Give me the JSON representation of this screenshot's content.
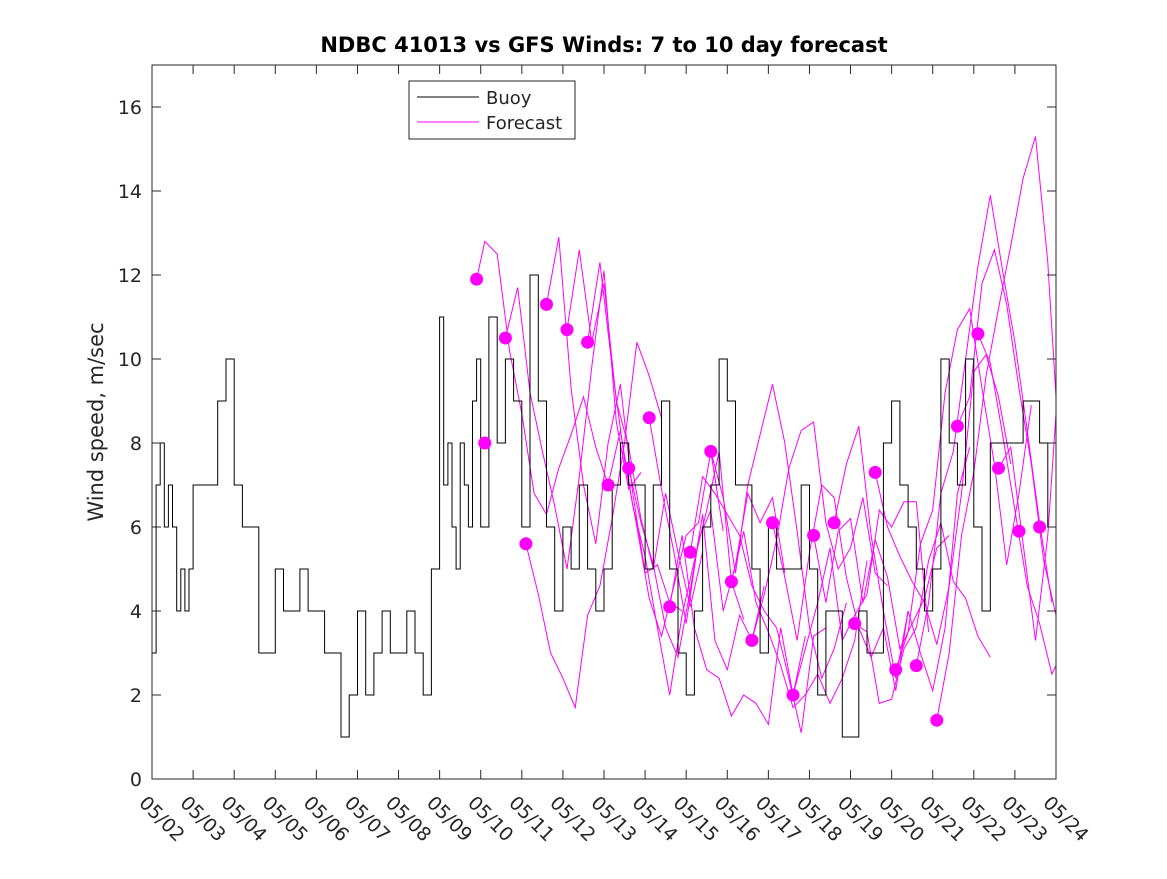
{
  "chart_data": {
    "type": "line",
    "title": "NDBC 41013 vs GFS Winds: 7 to 10 day forecast",
    "xlabel": "",
    "ylabel": "Wind speed, m/sec",
    "xlim": [
      0,
      22
    ],
    "ylim": [
      0,
      17
    ],
    "x_ticks": [
      0,
      1,
      2,
      3,
      4,
      5,
      6,
      7,
      8,
      9,
      10,
      11,
      12,
      13,
      14,
      15,
      16,
      17,
      18,
      19,
      20,
      21,
      22
    ],
    "x_tick_labels": [
      "05/02",
      "05/03",
      "05/04",
      "05/05",
      "05/06",
      "05/07",
      "05/08",
      "05/09",
      "05/10",
      "05/11",
      "05/12",
      "05/13",
      "05/14",
      "05/15",
      "05/16",
      "05/17",
      "05/18",
      "05/19",
      "05/20",
      "05/21",
      "05/22",
      "05/23",
      "05/24"
    ],
    "y_ticks": [
      0,
      2,
      4,
      6,
      8,
      10,
      12,
      14,
      16
    ],
    "y_tick_labels": [
      "0",
      "2",
      "4",
      "6",
      "8",
      "10",
      "12",
      "14",
      "16"
    ],
    "grid": false,
    "legend": {
      "placement": "top-left-inside",
      "entries": [
        "Buoy",
        "Forecast"
      ]
    },
    "colors": {
      "buoy": "#000000",
      "forecast": "#ff00ff"
    },
    "series": [
      {
        "name": "Buoy",
        "x": [
          0,
          0.1,
          0.2,
          0.3,
          0.4,
          0.5,
          0.6,
          0.7,
          0.8,
          0.9,
          1.0,
          1.2,
          1.4,
          1.6,
          1.8,
          2.0,
          2.2,
          2.4,
          2.6,
          2.8,
          3.0,
          3.2,
          3.4,
          3.6,
          3.8,
          4.0,
          4.2,
          4.4,
          4.6,
          4.8,
          5.0,
          5.2,
          5.4,
          5.6,
          5.8,
          6.0,
          6.2,
          6.4,
          6.6,
          6.8,
          7.0,
          7.1,
          7.2,
          7.3,
          7.4,
          7.5,
          7.6,
          7.7,
          7.8,
          7.9,
          8.0,
          8.2,
          8.4,
          8.6,
          8.8,
          9.0,
          9.2,
          9.4,
          9.6,
          9.8,
          10.0,
          10.2,
          10.4,
          10.6,
          10.8,
          11.0,
          11.2,
          11.4,
          11.6,
          11.8,
          12.0,
          12.2,
          12.4,
          12.6,
          12.8,
          13.0,
          13.2,
          13.4,
          13.6,
          13.8,
          14.0,
          14.2,
          14.4,
          14.6,
          14.8,
          15.0,
          15.2,
          15.4,
          15.6,
          15.8,
          16.0,
          16.2,
          16.4,
          16.6,
          16.8,
          17.0,
          17.2,
          17.4,
          17.6,
          17.8,
          18.0,
          18.2,
          18.4,
          18.6,
          18.8,
          19.0,
          19.2,
          19.4,
          19.6,
          19.8,
          20.0,
          20.2,
          20.4,
          20.6,
          20.8,
          21.0,
          21.2,
          21.4,
          21.6,
          21.8,
          22.0
        ],
        "values": [
          3,
          7,
          8,
          6,
          7,
          6,
          4,
          5,
          4,
          5,
          7,
          7,
          7,
          9,
          10,
          7,
          6,
          6,
          3,
          3,
          5,
          4,
          4,
          5,
          4,
          4,
          3,
          3,
          1,
          2,
          4,
          2,
          3,
          4,
          3,
          3,
          4,
          3,
          2,
          5,
          11,
          7,
          8,
          6,
          5,
          8,
          7,
          6,
          9,
          10,
          6,
          11,
          8,
          10,
          9,
          6,
          12,
          9,
          6,
          4,
          6,
          5,
          7,
          5,
          4,
          5,
          7,
          8,
          7,
          7,
          5,
          7,
          9,
          5,
          3,
          2,
          4,
          6,
          7,
          10,
          9,
          7,
          7,
          5,
          3,
          6,
          5,
          5,
          5,
          7,
          5,
          2,
          4,
          4,
          1,
          1,
          4,
          3,
          3,
          8,
          9,
          7,
          6,
          5,
          4,
          5,
          10,
          8,
          7,
          10,
          6,
          4,
          8,
          8,
          8,
          8,
          9,
          9,
          8,
          6,
          6
        ]
      },
      {
        "name": "Forecast",
        "x": [
          7.9,
          8.1,
          8.6,
          9.1,
          9.6,
          10.1,
          10.6,
          11.1,
          11.6,
          12.1,
          12.6,
          13.1,
          13.6,
          14.1,
          14.6,
          15.1,
          15.6,
          16.1,
          16.6,
          17.1,
          17.6,
          18.1,
          18.6,
          19.1,
          19.6,
          20.1,
          20.6,
          21.1,
          21.6
        ],
        "values": [
          11.9,
          8.0,
          10.5,
          5.6,
          11.3,
          10.7,
          10.4,
          7.0,
          7.4,
          8.6,
          4.1,
          5.4,
          7.8,
          4.7,
          3.3,
          6.1,
          2.0,
          5.8,
          6.1,
          3.7,
          7.3,
          2.6,
          2.7,
          1.4,
          8.4,
          10.6,
          7.4,
          5.9,
          6.0
        ]
      }
    ],
    "forecast_runs": [
      {
        "x": [
          7.9,
          8.1,
          8.4,
          8.7,
          9.0,
          9.3,
          9.6,
          9.9,
          10.2,
          10.5,
          10.8,
          11.1
        ],
        "values": [
          11.9,
          12.8,
          12.5,
          10.2,
          8.7,
          6.8,
          6.3,
          7.4,
          8.2,
          9.1,
          7.9,
          7.0
        ]
      },
      {
        "x": [
          8.6,
          8.9,
          9.2,
          9.5,
          9.8,
          10.1,
          10.4,
          10.7,
          11.0,
          11.3,
          11.6,
          11.9
        ],
        "values": [
          10.5,
          11.7,
          9.2,
          7.8,
          6.5,
          5.0,
          7.2,
          9.8,
          12.1,
          8.5,
          6.9,
          7.3
        ]
      },
      {
        "x": [
          9.1,
          9.4,
          9.7,
          10.0,
          10.3,
          10.6,
          10.9,
          11.2,
          11.5,
          11.8,
          12.1,
          12.4
        ],
        "values": [
          5.6,
          4.4,
          3.0,
          2.4,
          1.7,
          3.9,
          4.6,
          6.2,
          8.0,
          10.4,
          9.6,
          8.6
        ]
      },
      {
        "x": [
          9.6,
          9.9,
          10.2,
          10.5,
          10.8,
          11.1,
          11.4,
          11.7,
          12.0,
          12.3,
          12.6,
          12.9
        ],
        "values": [
          11.3,
          12.9,
          9.3,
          7.0,
          5.6,
          8.0,
          9.4,
          6.8,
          4.9,
          5.1,
          4.2,
          4.0
        ]
      },
      {
        "x": [
          10.1,
          10.4,
          10.7,
          11.0,
          11.3,
          11.6,
          11.9,
          12.2,
          12.5,
          12.8,
          13.1,
          13.4
        ],
        "values": [
          10.7,
          12.6,
          10.4,
          11.8,
          9.0,
          7.9,
          6.2,
          5.0,
          6.8,
          5.4,
          4.1,
          5.4
        ]
      },
      {
        "x": [
          10.6,
          10.9,
          11.2,
          11.5,
          11.8,
          12.1,
          12.4,
          12.7,
          13.0,
          13.3,
          13.6,
          13.9
        ],
        "values": [
          10.4,
          12.3,
          9.8,
          7.6,
          6.0,
          4.3,
          3.4,
          4.6,
          5.8,
          6.1,
          7.8,
          5.9
        ]
      },
      {
        "x": [
          11.1,
          11.4,
          11.7,
          12.0,
          12.3,
          12.6,
          12.9,
          13.2,
          13.5,
          13.8,
          14.1,
          14.4
        ],
        "values": [
          7.0,
          8.3,
          6.5,
          5.3,
          3.6,
          2.0,
          3.9,
          5.2,
          6.4,
          7.8,
          4.7,
          3.8
        ]
      },
      {
        "x": [
          11.6,
          11.9,
          12.2,
          12.5,
          12.8,
          13.1,
          13.4,
          13.7,
          14.0,
          14.3,
          14.6,
          14.9
        ],
        "values": [
          7.4,
          6.1,
          5.1,
          3.6,
          2.9,
          4.5,
          6.3,
          3.3,
          2.6,
          3.9,
          3.3,
          4.6
        ]
      },
      {
        "x": [
          12.1,
          12.4,
          12.7,
          13.0,
          13.3,
          13.6,
          13.9,
          14.2,
          14.5,
          14.8,
          15.1,
          15.4
        ],
        "values": [
          8.6,
          6.9,
          5.4,
          3.7,
          5.7,
          6.4,
          4.0,
          5.1,
          6.8,
          6.1,
          6.7,
          4.9
        ]
      },
      {
        "x": [
          12.6,
          12.9,
          13.2,
          13.5,
          13.8,
          14.1,
          14.4,
          14.7,
          15.0,
          15.3,
          15.6,
          15.9
        ],
        "values": [
          4.1,
          5.8,
          3.6,
          2.6,
          2.4,
          1.5,
          2.0,
          1.8,
          1.3,
          3.6,
          2.0,
          3.4
        ]
      },
      {
        "x": [
          13.1,
          13.4,
          13.7,
          14.0,
          14.3,
          14.6,
          14.9,
          15.2,
          15.5,
          15.8,
          16.1,
          16.4
        ],
        "values": [
          5.4,
          7.2,
          6.8,
          6.3,
          5.8,
          4.6,
          4.0,
          3.6,
          2.4,
          1.1,
          3.4,
          3.6
        ]
      },
      {
        "x": [
          13.6,
          13.9,
          14.2,
          14.5,
          14.8,
          15.1,
          15.4,
          15.7,
          16.0,
          16.3,
          16.6,
          16.9
        ],
        "values": [
          7.8,
          6.7,
          4.9,
          7.0,
          8.2,
          9.4,
          8.0,
          5.9,
          3.6,
          2.4,
          3.1,
          4.2
        ]
      },
      {
        "x": [
          14.1,
          14.4,
          14.7,
          15.0,
          15.3,
          15.6,
          15.9,
          16.2,
          16.5,
          16.8,
          17.1,
          17.4
        ],
        "values": [
          4.7,
          5.9,
          4.2,
          3.5,
          2.7,
          1.7,
          2.0,
          2.5,
          1.8,
          2.4,
          3.3,
          5.2
        ]
      },
      {
        "x": [
          14.6,
          14.9,
          15.2,
          15.5,
          15.8,
          16.1,
          16.4,
          16.7,
          17.0,
          17.3,
          17.6,
          17.9
        ],
        "values": [
          3.3,
          4.4,
          5.7,
          7.4,
          8.3,
          8.5,
          6.1,
          5.0,
          5.5,
          6.7,
          4.9,
          4.6
        ]
      },
      {
        "x": [
          15.1,
          15.4,
          15.7,
          16.0,
          16.3,
          16.6,
          16.9,
          17.2,
          17.5,
          17.8,
          18.1,
          18.4
        ],
        "values": [
          6.1,
          4.8,
          3.3,
          5.4,
          7.0,
          6.7,
          4.8,
          3.6,
          2.9,
          3.6,
          2.1,
          4.0
        ]
      },
      {
        "x": [
          15.6,
          15.9,
          16.2,
          16.5,
          16.8,
          17.1,
          17.4,
          17.7,
          18.0,
          18.3,
          18.6,
          18.9
        ],
        "values": [
          2.0,
          3.1,
          4.2,
          5.5,
          3.3,
          3.9,
          4.4,
          6.4,
          6.0,
          6.6,
          6.6,
          3.5
        ]
      },
      {
        "x": [
          16.1,
          16.4,
          16.7,
          17.0,
          17.3,
          17.6,
          17.9,
          18.2,
          18.5,
          18.8,
          19.1,
          19.4
        ],
        "values": [
          5.8,
          4.2,
          5.9,
          6.2,
          4.2,
          5.7,
          4.8,
          3.1,
          3.7,
          4.3,
          5.5,
          5.8
        ]
      },
      {
        "x": [
          16.6,
          16.9,
          17.2,
          17.5,
          17.8,
          18.1,
          18.4,
          18.7,
          19.0,
          19.3,
          19.6,
          19.9
        ],
        "values": [
          6.1,
          7.5,
          8.4,
          5.8,
          4.0,
          2.4,
          4.0,
          3.0,
          2.1,
          3.6,
          6.8,
          7.9
        ]
      },
      {
        "x": [
          17.1,
          17.4,
          17.7,
          18.0,
          18.3,
          18.6,
          18.9,
          19.2,
          19.5,
          19.8,
          20.1,
          20.4
        ],
        "values": [
          3.7,
          3.5,
          1.8,
          1.9,
          3.1,
          3.6,
          5.2,
          6.1,
          4.7,
          4.3,
          3.4,
          2.9
        ]
      },
      {
        "x": [
          17.6,
          17.9,
          18.2,
          18.5,
          18.8,
          19.1,
          19.4,
          19.7,
          20.0,
          20.3,
          20.6,
          20.9
        ],
        "values": [
          7.3,
          6.0,
          5.3,
          4.7,
          4.2,
          3.2,
          4.6,
          6.8,
          9.7,
          10.1,
          9.1,
          7.5
        ]
      },
      {
        "x": [
          18.1,
          18.4,
          18.7,
          19.0,
          19.3,
          19.6,
          19.9,
          20.2,
          20.5,
          20.8,
          21.1,
          21.4
        ],
        "values": [
          2.6,
          3.5,
          5.6,
          6.4,
          9.2,
          10.7,
          11.2,
          9.3,
          7.5,
          5.1,
          6.8,
          8.9
        ]
      },
      {
        "x": [
          18.6,
          18.9,
          19.2,
          19.5,
          19.8,
          20.1,
          20.4,
          20.7,
          21.0,
          21.3,
          21.6,
          21.9
        ],
        "values": [
          2.7,
          4.2,
          6.8,
          7.8,
          10.0,
          12.2,
          13.9,
          12.1,
          10.4,
          8.3,
          6.1,
          4.2
        ]
      },
      {
        "x": [
          19.1,
          19.4,
          19.7,
          20.0,
          20.3,
          20.6,
          20.9,
          21.2,
          21.5,
          21.8,
          22.0
        ],
        "values": [
          1.4,
          3.0,
          5.8,
          7.3,
          9.6,
          11.2,
          12.7,
          14.3,
          15.3,
          12.3,
          9.1
        ]
      },
      {
        "x": [
          19.6,
          19.9,
          20.2,
          20.5,
          20.8,
          21.1,
          21.4,
          21.7,
          22.0
        ],
        "values": [
          8.4,
          9.1,
          11.8,
          12.6,
          11.3,
          9.3,
          7.5,
          5.2,
          3.9
        ]
      },
      {
        "x": [
          20.1,
          20.4,
          20.7,
          21.0,
          21.3,
          21.6,
          21.9,
          22.0
        ],
        "values": [
          10.6,
          9.9,
          8.2,
          6.4,
          4.6,
          3.7,
          2.5,
          2.7
        ]
      },
      {
        "x": [
          20.6,
          20.9,
          21.2,
          21.5,
          21.8,
          22.0
        ],
        "values": [
          7.4,
          7.9,
          5.6,
          3.3,
          5.8,
          8.7
        ]
      }
    ]
  }
}
